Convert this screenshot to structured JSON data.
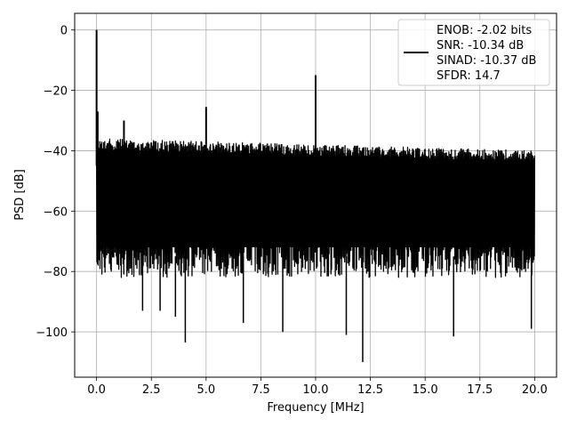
{
  "chart_data": {
    "type": "line",
    "xlabel": "Frequency [MHz]",
    "ylabel": "PSD [dB]",
    "xlim": [
      -1,
      21
    ],
    "ylim": [
      -115,
      5.5
    ],
    "xticks": [
      0.0,
      2.5,
      5.0,
      7.5,
      10.0,
      12.5,
      15.0,
      17.5,
      20.0
    ],
    "xtick_labels": [
      "0.0",
      "2.5",
      "5.0",
      "7.5",
      "10.0",
      "12.5",
      "15.0",
      "17.5",
      "20.0"
    ],
    "yticks": [
      0,
      -20,
      -40,
      -60,
      -80,
      -100
    ],
    "ytick_labels": [
      "0",
      "−20",
      "−40",
      "−60",
      "−80",
      "−100"
    ],
    "grid": true,
    "legend_position": "top-right",
    "legend_lines": [
      "ENOB: -2.02 bits",
      "SNR: -10.34 dB",
      "SINAD: -10.37 dB",
      "SFDR: 14.7"
    ],
    "series": [
      {
        "color": "#000000",
        "noise_band": {
          "x_range": [
            0,
            20
          ],
          "upper_start": -36,
          "upper_end": -40,
          "lower_typical": -80,
          "lower_deep": -88
        },
        "peaks": [
          {
            "x": 0.0,
            "y": 0
          },
          {
            "x": 0.05,
            "y": -27
          },
          {
            "x": 1.25,
            "y": -30
          },
          {
            "x": 5.0,
            "y": -25.5
          },
          {
            "x": 10.0,
            "y": -15
          }
        ],
        "dips": [
          {
            "x": 2.1,
            "y": -93
          },
          {
            "x": 2.9,
            "y": -93
          },
          {
            "x": 3.6,
            "y": -95
          },
          {
            "x": 4.05,
            "y": -103.5
          },
          {
            "x": 6.7,
            "y": -97
          },
          {
            "x": 8.5,
            "y": -100
          },
          {
            "x": 11.4,
            "y": -101
          },
          {
            "x": 12.15,
            "y": -110
          },
          {
            "x": 16.3,
            "y": -101.5
          },
          {
            "x": 19.85,
            "y": -99
          }
        ]
      }
    ]
  }
}
